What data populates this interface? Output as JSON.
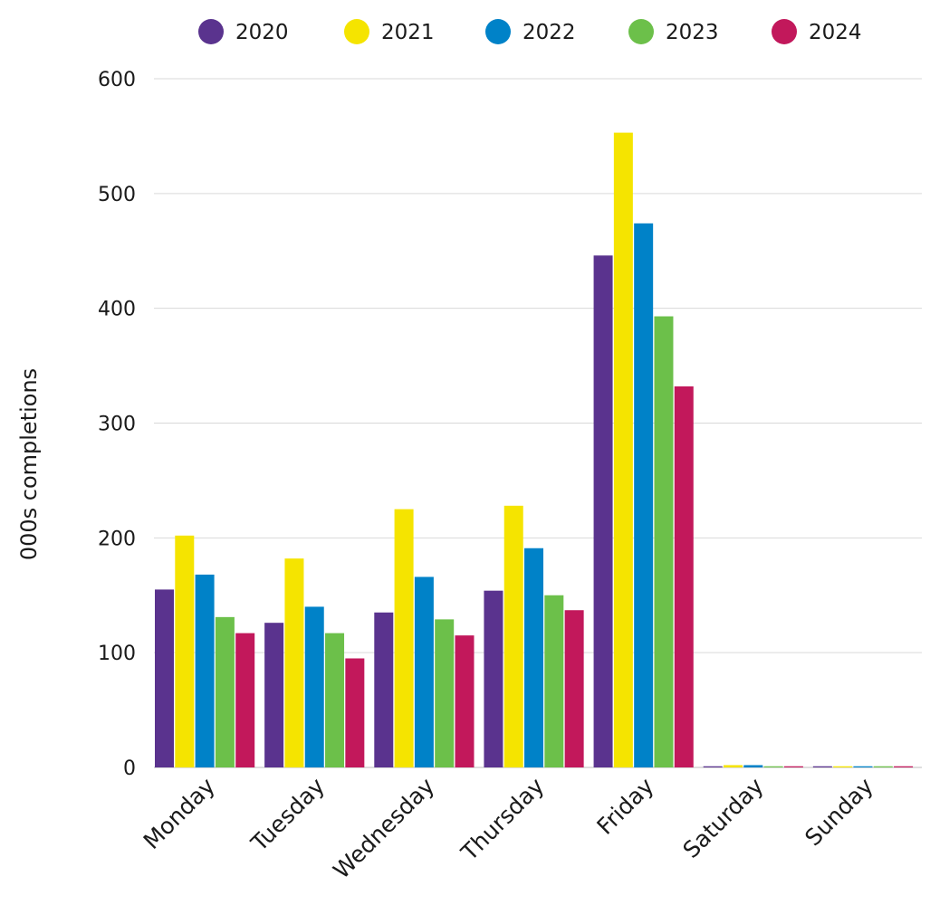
{
  "chart_data": {
    "type": "bar",
    "title": "",
    "xlabel": "",
    "ylabel": "000s completions",
    "ylim": [
      0,
      600
    ],
    "yticks": [
      0,
      100,
      200,
      300,
      400,
      500,
      600
    ],
    "ytick_labels": [
      "0",
      "100",
      "200",
      "300",
      "400",
      "500",
      "600"
    ],
    "grid": true,
    "legend_position": "top",
    "categories": [
      "Monday",
      "Tuesday",
      "Wednesday",
      "Thursday",
      "Friday",
      "Saturday",
      "Sunday"
    ],
    "series": [
      {
        "name": "2020",
        "color": "#5a338e",
        "values": [
          155,
          126,
          135,
          154,
          446,
          1,
          1
        ]
      },
      {
        "name": "2021",
        "color": "#f5e400",
        "values": [
          202,
          182,
          225,
          228,
          553,
          2,
          1
        ]
      },
      {
        "name": "2022",
        "color": "#0082c8",
        "values": [
          168,
          140,
          166,
          191,
          474,
          2,
          1
        ]
      },
      {
        "name": "2023",
        "color": "#6cc04a",
        "values": [
          131,
          117,
          129,
          150,
          393,
          1,
          1
        ]
      },
      {
        "name": "2024",
        "color": "#c2185b",
        "values": [
          117,
          95,
          115,
          137,
          332,
          1,
          1
        ]
      }
    ]
  }
}
